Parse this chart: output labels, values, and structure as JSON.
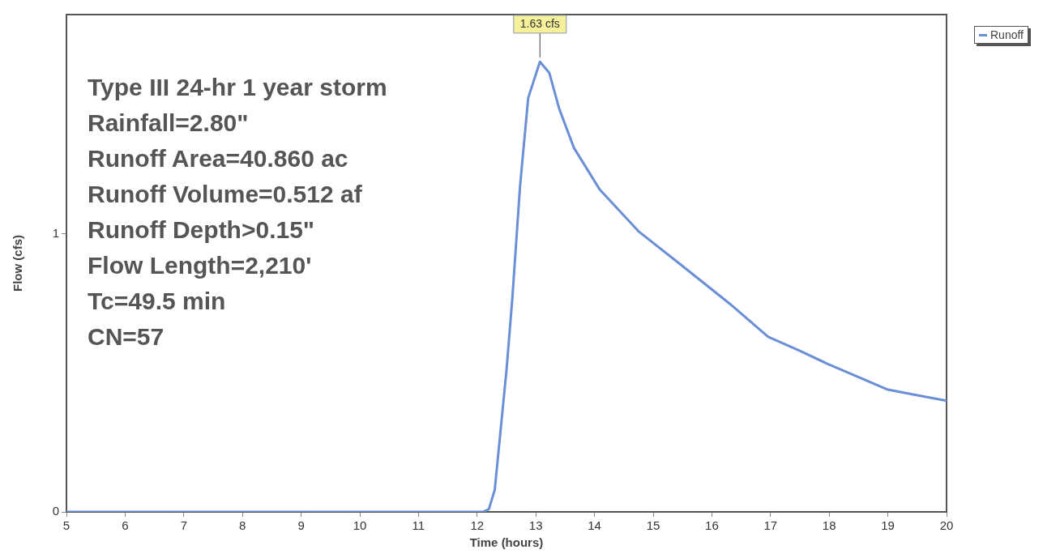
{
  "chart_data": {
    "type": "line",
    "xlabel": "Time (hours)",
    "ylabel": "Flow (cfs)",
    "xlim": [
      5,
      20
    ],
    "xticks": [
      5,
      6,
      7,
      8,
      9,
      10,
      11,
      12,
      13,
      14,
      15,
      16,
      17,
      18,
      19,
      20
    ],
    "ylim": [
      0,
      1.79
    ],
    "yticks": [
      0,
      1
    ],
    "x": [
      5,
      12.1,
      12.2,
      12.3,
      12.5,
      12.6,
      12.73,
      12.87,
      13.07,
      13.23,
      13.4,
      13.65,
      14.09,
      14.75,
      15.47,
      16.3,
      16.96,
      17.5,
      18,
      19,
      19.5,
      20
    ],
    "series": [
      {
        "name": "Runoff",
        "color": "#6a8fd6",
        "values": [
          0,
          0,
          0.01,
          0.08,
          0.51,
          0.77,
          1.17,
          1.49,
          1.62,
          1.58,
          1.45,
          1.31,
          1.16,
          1.01,
          0.89,
          0.75,
          0.63,
          0.58,
          0.53,
          0.44,
          0.42,
          0.4
        ]
      }
    ],
    "annotations": [
      {
        "text": "1.63 cfs",
        "x": 13.07,
        "y": 1.63
      },
      "Type III 24-hr 1 year storm",
      "Rainfall=2.80\"",
      "Runoff Area=40.860 ac",
      "Runoff Volume=0.512 af",
      "Runoff Depth>0.15\"",
      "Flow Length=2,210'",
      "Tc=49.5 min",
      "CN=57"
    ],
    "grid": false,
    "legend": "top right",
    "marker": "none",
    "line_style": "solid"
  }
}
